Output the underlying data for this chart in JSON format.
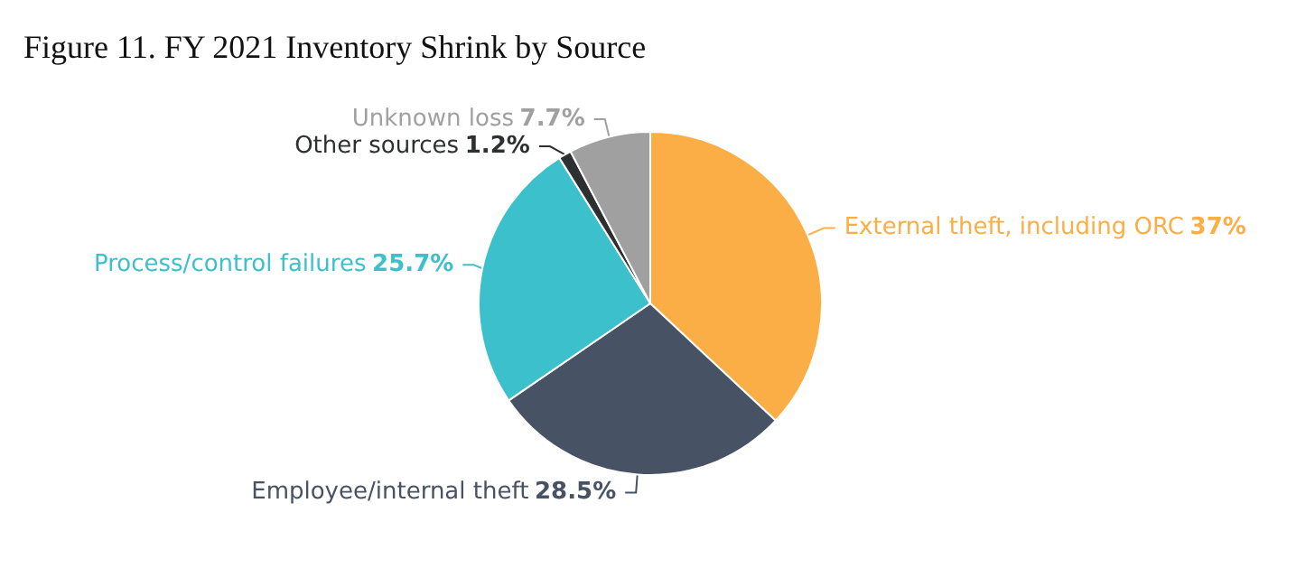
{
  "chart_data": {
    "type": "pie",
    "title": "Figure 11. FY 2021 Inventory Shrink by Source",
    "categories": [
      "External theft, including ORC",
      "Employee/internal theft",
      "Process/control failures",
      "Other sources",
      "Unknown loss"
    ],
    "values": [
      37,
      28.5,
      25.7,
      1.2,
      7.7
    ],
    "value_labels": [
      "37%",
      "28.5%",
      "25.7%",
      "1.2%",
      "7.7%"
    ],
    "colors": [
      "#fbae45",
      "#475264",
      "#3cc0cc",
      "#2d2f33",
      "#a0a0a0"
    ],
    "legend": false
  }
}
